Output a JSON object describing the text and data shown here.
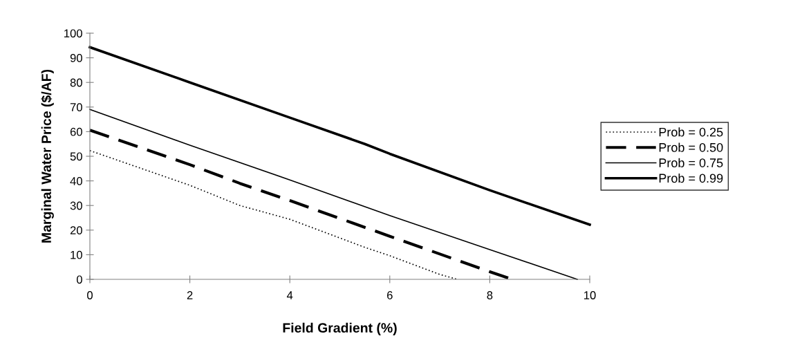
{
  "chart_data": {
    "type": "line",
    "xlabel": "Field Gradient (%)",
    "ylabel": "Marginal Water Price ($/AF)",
    "xlim": [
      0,
      10
    ],
    "ylim": [
      0,
      100
    ],
    "xticks": [
      0,
      2,
      4,
      6,
      8,
      10
    ],
    "yticks": [
      0,
      10,
      20,
      30,
      40,
      50,
      60,
      70,
      80,
      90,
      100
    ],
    "grid": false,
    "legend": "right",
    "marker": "none",
    "series": [
      {
        "name": "Prob = 0.25",
        "color": "#000000",
        "line_style": "dotted",
        "x": [
          0,
          2,
          3,
          4,
          5.5,
          6,
          7,
          7.35
        ],
        "values": [
          52.3,
          38.2,
          30,
          24.4,
          13,
          9.6,
          2,
          0
        ]
      },
      {
        "name": "Prob = 0.50",
        "color": "#000000",
        "line_style": "dashed",
        "x": [
          0,
          2,
          3,
          4,
          6,
          8,
          8.45
        ],
        "values": [
          60.6,
          46.6,
          39,
          32,
          17.5,
          3.1,
          0
        ]
      },
      {
        "name": "Prob = 0.75",
        "color": "#000000",
        "line_style": "solid",
        "x": [
          0,
          2,
          4,
          6,
          8,
          9.75
        ],
        "values": [
          69,
          54.5,
          40.4,
          25.9,
          12.1,
          0
        ]
      },
      {
        "name": "Prob = 0.99",
        "color": "#000000",
        "line_style": "solid",
        "x": [
          0,
          2,
          4,
          5.5,
          6,
          8,
          10
        ],
        "values": [
          94.3,
          80,
          65.7,
          55,
          51,
          36.2,
          22.2
        ]
      }
    ]
  }
}
